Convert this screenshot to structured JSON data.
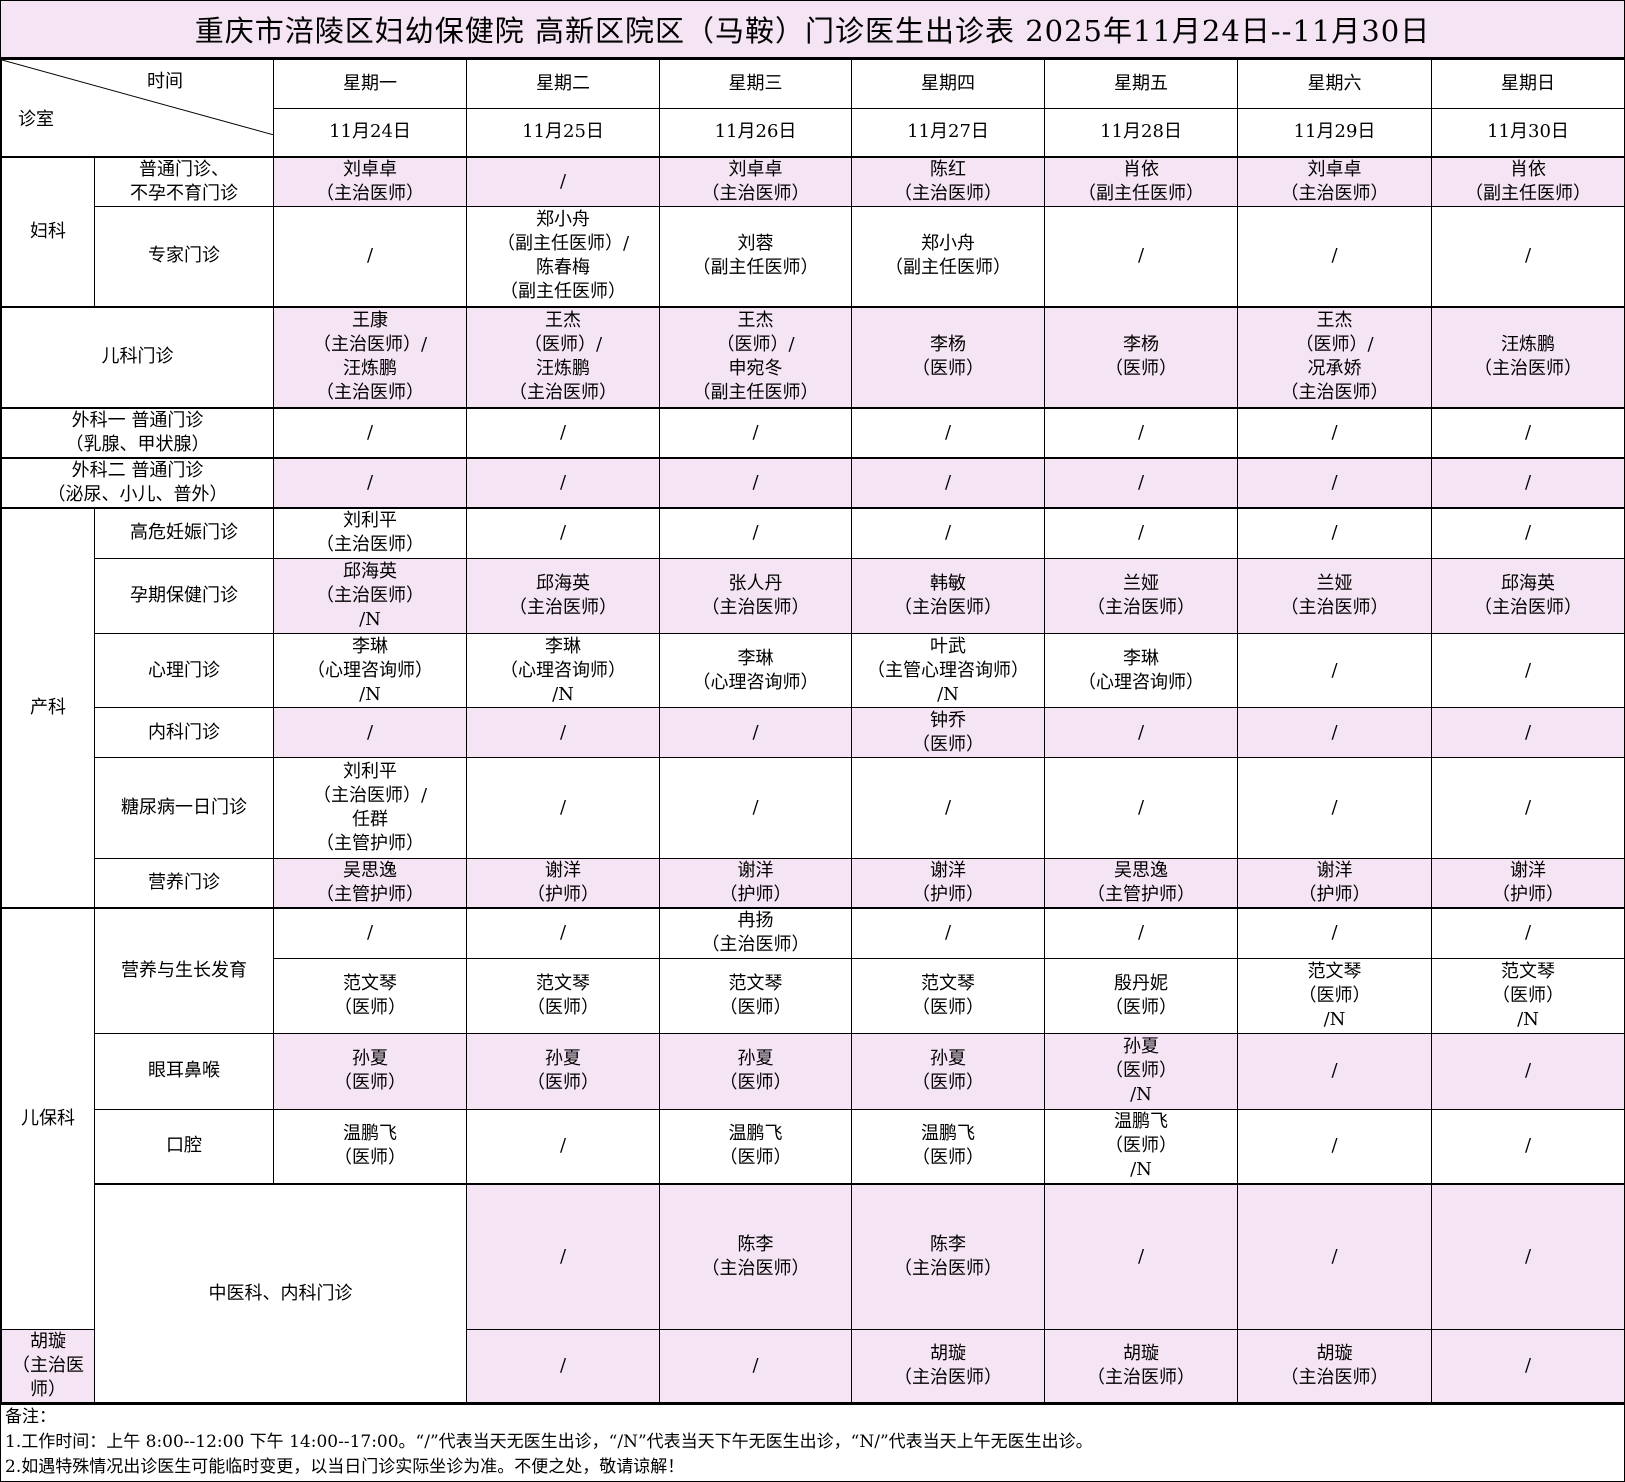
{
  "title": "重庆市涪陵区妇幼保健院  高新区院区（马鞍）门诊医生出诊表    2025年11月24日--11月30日",
  "header": {
    "time_label": "时间",
    "room_label": "诊室",
    "weekdays": [
      "星期一",
      "星期二",
      "星期三",
      "星期四",
      "星期五",
      "星期六",
      "星期日"
    ],
    "dates": [
      "11月24日",
      "11月25日",
      "11月26日",
      "11月27日",
      "11月28日",
      "11月29日",
      "11月30日"
    ]
  },
  "highlight_color": "#f5e4f3",
  "rows": [
    {
      "group": "妇科",
      "group_rows": 2,
      "sub": "普通门诊、\n不孕不育门诊",
      "pink": true,
      "cells": [
        "刘卓卓\n（主治医师）",
        "/",
        "刘卓卓\n（主治医师）",
        "陈红\n（主治医师）",
        "肖依\n（副主任医师）",
        "刘卓卓\n（主治医师）",
        "肖依\n（副主任医师）"
      ]
    },
    {
      "sub": "专家门诊",
      "pink": false,
      "cells": [
        "/",
        "郑小舟\n（副主任医师）/\n陈春梅\n（副主任医师）",
        "刘蓉\n（副主任医师）",
        "郑小舟\n（副主任医师）",
        "/",
        "/",
        "/"
      ]
    },
    {
      "wide": "儿科门诊",
      "pink": true,
      "cells": [
        "王康\n（主治医师）/\n汪炼鹏\n（主治医师）",
        "王杰\n（医师）/\n汪炼鹏\n（主治医师）",
        "王杰\n（医师）/\n申宛冬\n（副主任医师）",
        "李杨\n（医师）",
        "李杨\n（医师）",
        "王杰\n（医师）/\n况承娇\n（主治医师）",
        "汪炼鹏\n（主治医师）"
      ]
    },
    {
      "wide": "外科一  普通门诊\n（乳腺、甲状腺）",
      "pink": false,
      "cells": [
        "/",
        "/",
        "/",
        "/",
        "/",
        "/",
        "/"
      ]
    },
    {
      "wide": "外科二  普通门诊\n（泌尿、小儿、普外）",
      "pink": true,
      "cells": [
        "/",
        "/",
        "/",
        "/",
        "/",
        "/",
        "/"
      ]
    },
    {
      "group": "产科",
      "group_rows": 6,
      "sub": "高危妊娠门诊",
      "pink": false,
      "cells": [
        "刘利平\n（主治医师）",
        "/",
        "/",
        "/",
        "/",
        "/",
        "/"
      ]
    },
    {
      "sub": "孕期保健门诊",
      "pink": true,
      "cells": [
        "邱海英\n（主治医师）\n/N",
        "邱海英\n（主治医师）",
        "张人丹\n（主治医师）",
        "韩敏\n（主治医师）",
        "兰娅\n（主治医师）",
        "兰娅\n（主治医师）",
        "邱海英\n（主治医师）"
      ]
    },
    {
      "sub": "心理门诊",
      "pink": false,
      "cells": [
        "李琳\n（心理咨询师）\n/N",
        "李琳\n（心理咨询师）\n/N",
        "李琳\n（心理咨询师）",
        "叶武\n（主管心理咨询师）\n/N",
        "李琳\n（心理咨询师）",
        "/",
        "/"
      ]
    },
    {
      "sub": "内科门诊",
      "pink": true,
      "cells": [
        "/",
        "/",
        "/",
        "钟乔\n（医师）",
        "/",
        "/",
        "/"
      ]
    },
    {
      "sub": "糖尿病一日门诊",
      "pink": false,
      "cells": [
        "刘利平\n（主治医师）/\n任群\n（主管护师）",
        "/",
        "/",
        "/",
        "/",
        "/",
        "/"
      ]
    },
    {
      "sub": "营养门诊",
      "pink": true,
      "cells": [
        "吴思逸\n（主管护师）",
        "谢洋\n（护师）",
        "谢洋\n（护师）",
        "谢洋\n（护师）",
        "吴思逸\n（主管护师）",
        "谢洋\n（护师）",
        "谢洋\n（护师）"
      ]
    },
    {
      "group": "儿保科",
      "group_rows": 5,
      "sub": "营养与生长发育",
      "sub_rows": 2,
      "pink": false,
      "cells": [
        "/",
        "/",
        "冉扬\n（主治医师）",
        "/",
        "/",
        "/",
        "/"
      ]
    },
    {
      "pink": false,
      "cells": [
        "范文琴\n（医师）",
        "范文琴\n（医师）",
        "范文琴\n（医师）",
        "范文琴\n（医师）",
        "殷丹妮\n（医师）",
        "范文琴\n（医师）\n/N",
        "范文琴\n（医师）\n/N"
      ]
    },
    {
      "sub": "眼耳鼻喉",
      "pink": true,
      "cells": [
        "孙夏\n（医师）",
        "孙夏\n（医师）",
        "孙夏\n（医师）",
        "孙夏\n（医师）",
        "孙夏\n（医师）\n/N",
        "/",
        "/"
      ]
    },
    {
      "sub": "口腔",
      "pink": false,
      "cells": [
        "温鹏飞\n（医师）",
        "/",
        "温鹏飞\n（医师）",
        "温鹏飞\n（医师）",
        "温鹏飞\n（医师）\n/N",
        "/",
        "/"
      ]
    },
    {
      "wide": "中医科、内科门诊",
      "wide_rows": 2,
      "pink": true,
      "cells": [
        "/",
        "陈李\n（主治医师）",
        "陈李\n（主治医师）",
        "/",
        "/",
        "/",
        "陈李\n（主治医师）"
      ]
    },
    {
      "pink": true,
      "cells": [
        "胡璇\n（主治医师）",
        "/",
        "/",
        "胡璇\n（主治医师）",
        "胡璇\n（主治医师）",
        "胡璇\n（主治医师）",
        "/"
      ]
    }
  ],
  "notes": {
    "heading": "备注：",
    "lines": [
      "1.工作时间：上午 8:00--12:00   下午 14:00--17:00。“/”代表当天无医生出诊，“/N”代表当天下午无医生出诊，“N/”代表当天上午无医生出诊。",
      "2.如遇特殊情况出诊医生可能临时变更，以当日门诊实际坐诊为准。不便之处，敬请谅解！"
    ]
  }
}
